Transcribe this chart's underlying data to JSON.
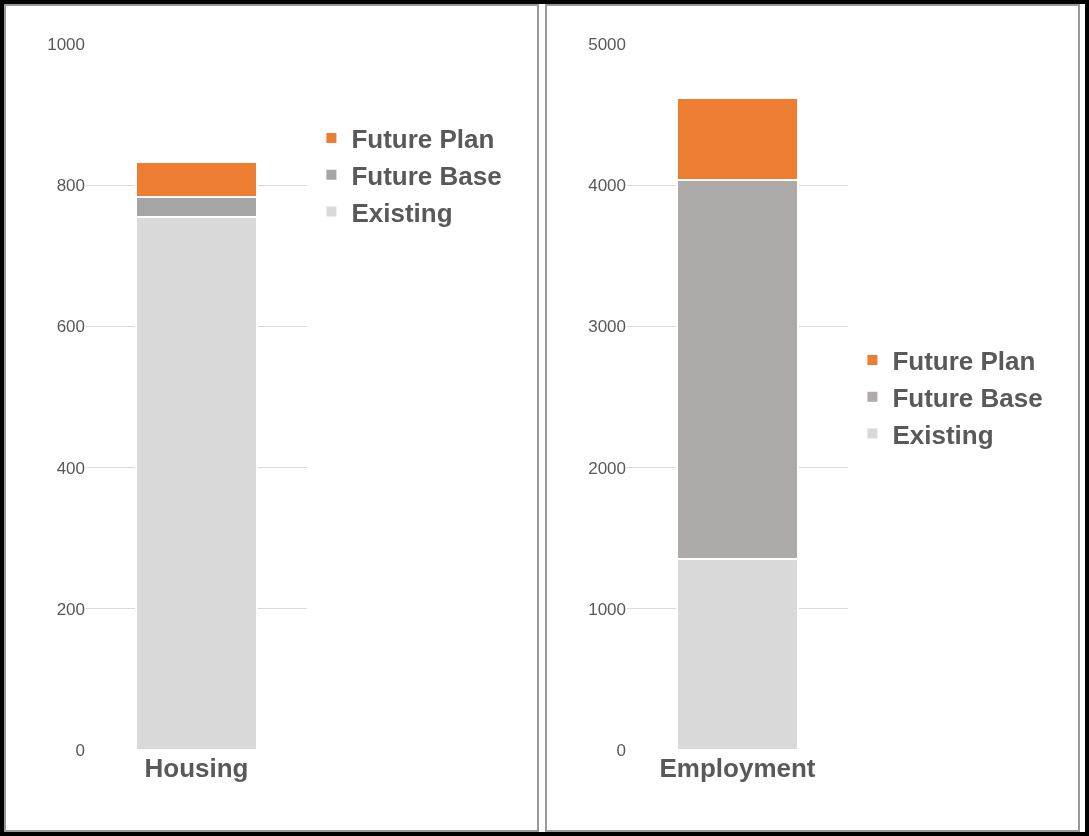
{
  "chart_data": [
    {
      "type": "bar",
      "stacked": true,
      "categories": [
        "Housing"
      ],
      "ylim": [
        0,
        1000
      ],
      "yticks": [
        0,
        200,
        400,
        600,
        800,
        1000
      ],
      "grid": "y",
      "legend": "top right",
      "series": [
        {
          "name": "Existing",
          "color": "#d9d9d9",
          "values": [
            755
          ]
        },
        {
          "name": "Future Base",
          "color": "#a5a5a5",
          "values": [
            28
          ]
        },
        {
          "name": "Future Plan",
          "color": "#ed7d31",
          "values": [
            50
          ]
        }
      ]
    },
    {
      "type": "bar",
      "stacked": true,
      "categories": [
        "Employment"
      ],
      "ylim": [
        0,
        5000
      ],
      "yticks": [
        0,
        1000,
        2000,
        3000,
        4000,
        5000
      ],
      "grid": "y",
      "legend": "right",
      "series": [
        {
          "name": "Existing",
          "color": "#d9d9d9",
          "values": [
            1350
          ]
        },
        {
          "name": "Future Base",
          "color": "#aeaaaa",
          "values": [
            2690
          ]
        },
        {
          "name": "Future Plan",
          "color": "#ed7d31",
          "values": [
            580
          ]
        }
      ]
    }
  ]
}
